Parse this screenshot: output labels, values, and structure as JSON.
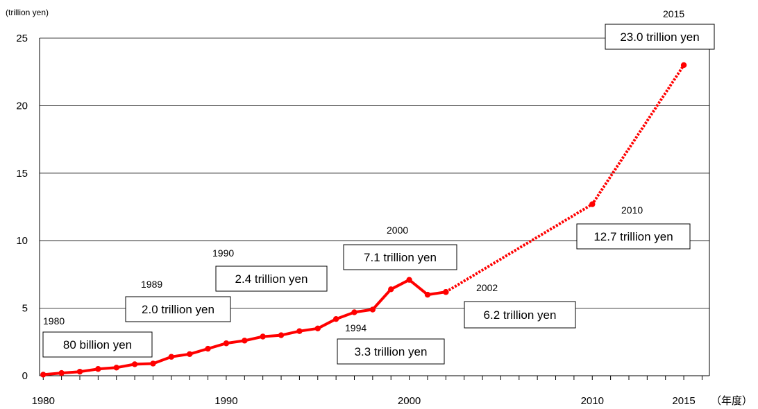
{
  "chart_data": {
    "type": "line",
    "yunit": "(trillion yen)",
    "xunit": "（年度）",
    "ylim": [
      0,
      25
    ],
    "yticks": [
      0,
      5,
      10,
      15,
      20,
      25
    ],
    "xlim": [
      1979.8,
      2016.4
    ],
    "xticks": [
      1980,
      1990,
      2000,
      2010,
      2015
    ],
    "grid": "horizontal",
    "legend": "none",
    "line_color": "#ff0000",
    "series": [
      {
        "style": "solid",
        "x": [
          1980,
          1981,
          1982,
          1983,
          1984,
          1985,
          1986,
          1987,
          1988,
          1989,
          1990,
          1991,
          1992,
          1993,
          1994,
          1995,
          1996,
          1997,
          1998,
          1999,
          2000,
          2001,
          2002
        ],
        "y": [
          0.08,
          0.2,
          0.3,
          0.5,
          0.6,
          0.85,
          0.9,
          1.4,
          1.6,
          2.0,
          2.4,
          2.6,
          2.9,
          3.0,
          3.3,
          3.5,
          4.2,
          4.7,
          4.9,
          6.4,
          7.1,
          6.0,
          6.2
        ]
      },
      {
        "style": "dotted",
        "x": [
          2002,
          2010,
          2015
        ],
        "y": [
          6.2,
          12.7,
          23.0
        ]
      }
    ],
    "annotations": [
      {
        "year": "1980",
        "text": "80 billion yen"
      },
      {
        "year": "1989",
        "text": "2.0 trillion yen"
      },
      {
        "year": "1990",
        "text": "2.4 trillion yen"
      },
      {
        "year": "1994",
        "text": "3.3 trillion yen"
      },
      {
        "year": "2000",
        "text": "7.1 trillion yen"
      },
      {
        "year": "2002",
        "text": "6.2 trillion yen"
      },
      {
        "year": "2010",
        "text": "12.7 trillion yen"
      },
      {
        "year": "2015",
        "text": "23.0 trillion yen"
      }
    ]
  }
}
